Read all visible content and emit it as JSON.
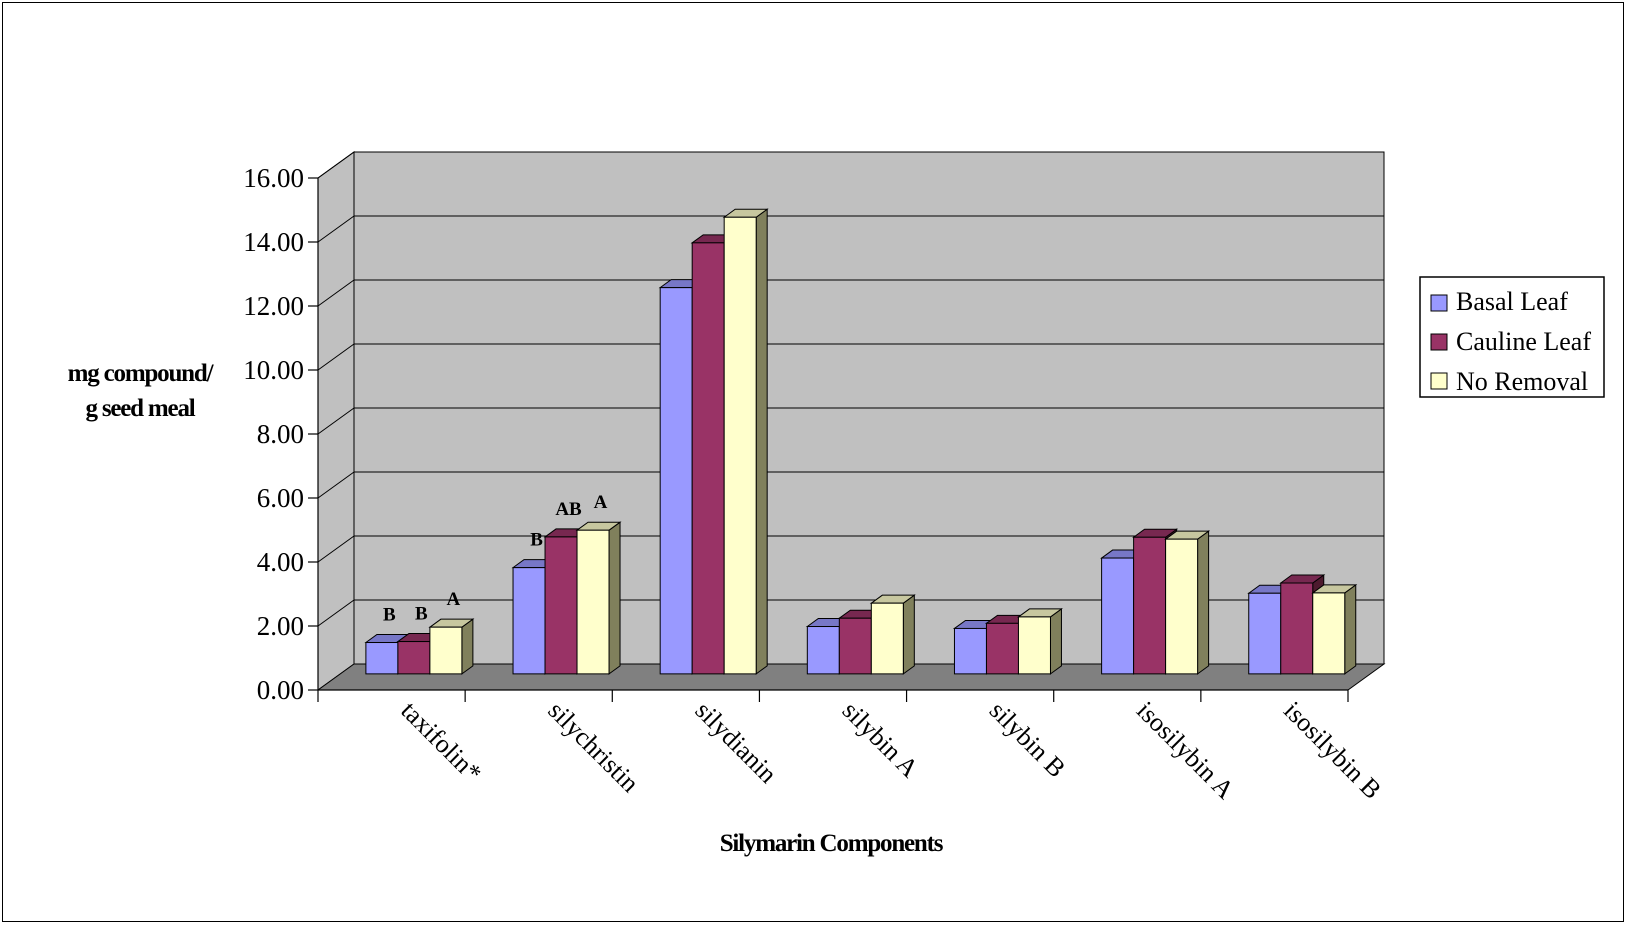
{
  "chart_data": {
    "type": "bar",
    "title": "",
    "xlabel": "Silymarin Components",
    "ylabel_lines": [
      "mg compound/",
      "g seed meal"
    ],
    "ylim": [
      0,
      16
    ],
    "yticks": [
      "0.00",
      "2.00",
      "4.00",
      "6.00",
      "8.00",
      "10.00",
      "12.00",
      "14.00",
      "16.00"
    ],
    "grid": true,
    "legend_position": "right",
    "categories": [
      "taxifolin*",
      "silychristin",
      "silydianin",
      "silybin A",
      "silybin B",
      "isosilybin A",
      "isosilybin B"
    ],
    "series": [
      {
        "name": "Basal Leaf",
        "color": "#9999ff",
        "values": [
          0.98,
          3.32,
          12.07,
          1.48,
          1.42,
          3.62,
          2.52
        ],
        "labels": [
          "B",
          "B",
          "",
          "",
          "",
          "",
          ""
        ]
      },
      {
        "name": "Cauline Leaf",
        "color": "#993366",
        "values": [
          1.01,
          4.28,
          13.47,
          1.74,
          1.58,
          4.27,
          2.84
        ],
        "labels": [
          "B",
          "AB",
          "",
          "",
          "",
          "",
          ""
        ]
      },
      {
        "name": "No Removal",
        "color": "#ffffcc",
        "values": [
          1.46,
          4.49,
          14.27,
          2.21,
          1.78,
          4.21,
          2.53
        ],
        "labels": [
          "A",
          "A",
          "",
          "",
          "",
          "",
          ""
        ]
      }
    ]
  }
}
